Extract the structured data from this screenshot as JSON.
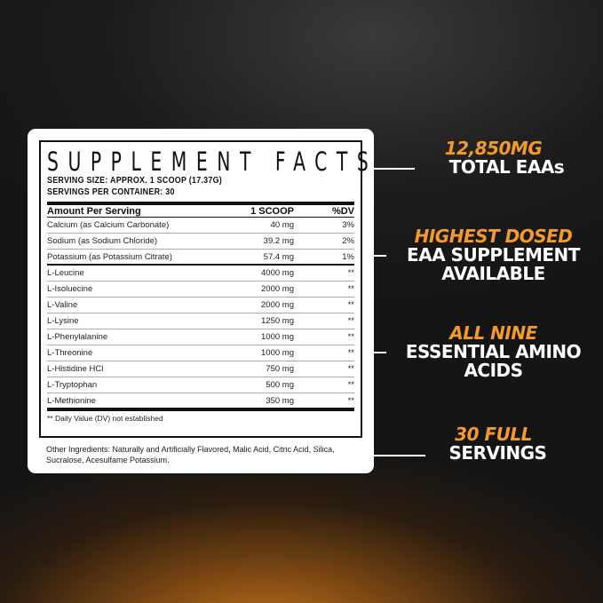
{
  "label": {
    "title": "SUPPLEMENT FACTS",
    "serving_size": "SERVING SIZE: APPROX. 1 SCOOP (17.37G)",
    "servings_per_container": "SERVINGS PER CONTAINER: 30",
    "columns": [
      "Amount Per Serving",
      "1 SCOOP",
      "%DV"
    ],
    "rows": [
      {
        "name": "Calcium (as Calcium Carbonate)",
        "amount": "40 mg",
        "dv": "3%"
      },
      {
        "name": "Sodium (as Sodium Chloride)",
        "amount": "39.2 mg",
        "dv": "2%"
      },
      {
        "name": "Potassium (as Potassium Citrate)",
        "amount": "57.4 mg",
        "dv": "1%"
      },
      {
        "name": "L-Leucine",
        "amount": "4000 mg",
        "dv": "**"
      },
      {
        "name": "L-Isoluecine",
        "amount": "2000 mg",
        "dv": "**"
      },
      {
        "name": "L-Valine",
        "amount": "2000 mg",
        "dv": "**"
      },
      {
        "name": "L-Lysine",
        "amount": "1250 mg",
        "dv": "**"
      },
      {
        "name": "L-Phenylalanine",
        "amount": "1000 mg",
        "dv": "**"
      },
      {
        "name": "L-Threonine",
        "amount": "1000 mg",
        "dv": "**"
      },
      {
        "name": "L-Histidine HCl",
        "amount": "750 mg",
        "dv": "**"
      },
      {
        "name": "L-Tryptophan",
        "amount": "500 mg",
        "dv": "**"
      },
      {
        "name": "L-Methionine",
        "amount": "350 mg",
        "dv": "**"
      }
    ],
    "footnote": "** Daily Value (DV) not established",
    "other_ingredients": "Other Ingredients: Naturally and Artificially Flavored, Malic Acid, Citric Acid, Silica, Sucralose, Acesulfame Potassium."
  },
  "claims": [
    {
      "highlight": "12,850MG",
      "text": [
        "TOTAL EAAs"
      ]
    },
    {
      "highlight": "HIGHEST DOSED",
      "text": [
        "EAA SUPPLEMENT",
        "AVAILABLE"
      ]
    },
    {
      "highlight": "ALL NINE",
      "text": [
        "ESSENTIAL AMINO",
        "ACIDS"
      ]
    },
    {
      "highlight": "30 FULL",
      "text": [
        "SERVINGS"
      ]
    }
  ],
  "colors": {
    "accent": "#f39a2a",
    "background": "#1c1c1c",
    "glow": "#c8781f"
  }
}
